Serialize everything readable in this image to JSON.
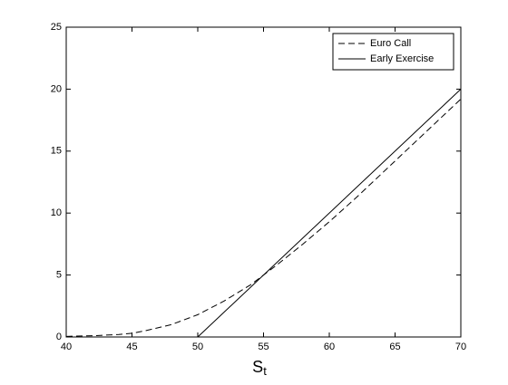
{
  "chart_data": {
    "type": "line",
    "xlabel": "S",
    "xlabel_subscript": "t",
    "xlim": [
      40,
      70
    ],
    "xticks": [
      40,
      45,
      50,
      55,
      60,
      65,
      70
    ],
    "ylim": [
      0,
      25
    ],
    "yticks": [
      0,
      5,
      10,
      15,
      20,
      25
    ],
    "legend": "top-right",
    "series": [
      {
        "name": "Euro Call",
        "color": "#000000",
        "dash": "dashed",
        "x": [
          40,
          42,
          44,
          45,
          46,
          48,
          50,
          52,
          54,
          55,
          56,
          58,
          60,
          62,
          64,
          65,
          66,
          68,
          70
        ],
        "values": [
          0.05,
          0.1,
          0.2,
          0.3,
          0.5,
          1.0,
          1.8,
          2.9,
          4.2,
          5.0,
          5.8,
          7.5,
          9.3,
          11.2,
          13.2,
          14.2,
          15.2,
          17.2,
          19.2
        ]
      },
      {
        "name": "Early Exercise",
        "color": "#000000",
        "dash": "solid",
        "x": [
          40,
          50,
          70
        ],
        "values": [
          0,
          0,
          20
        ]
      }
    ]
  }
}
